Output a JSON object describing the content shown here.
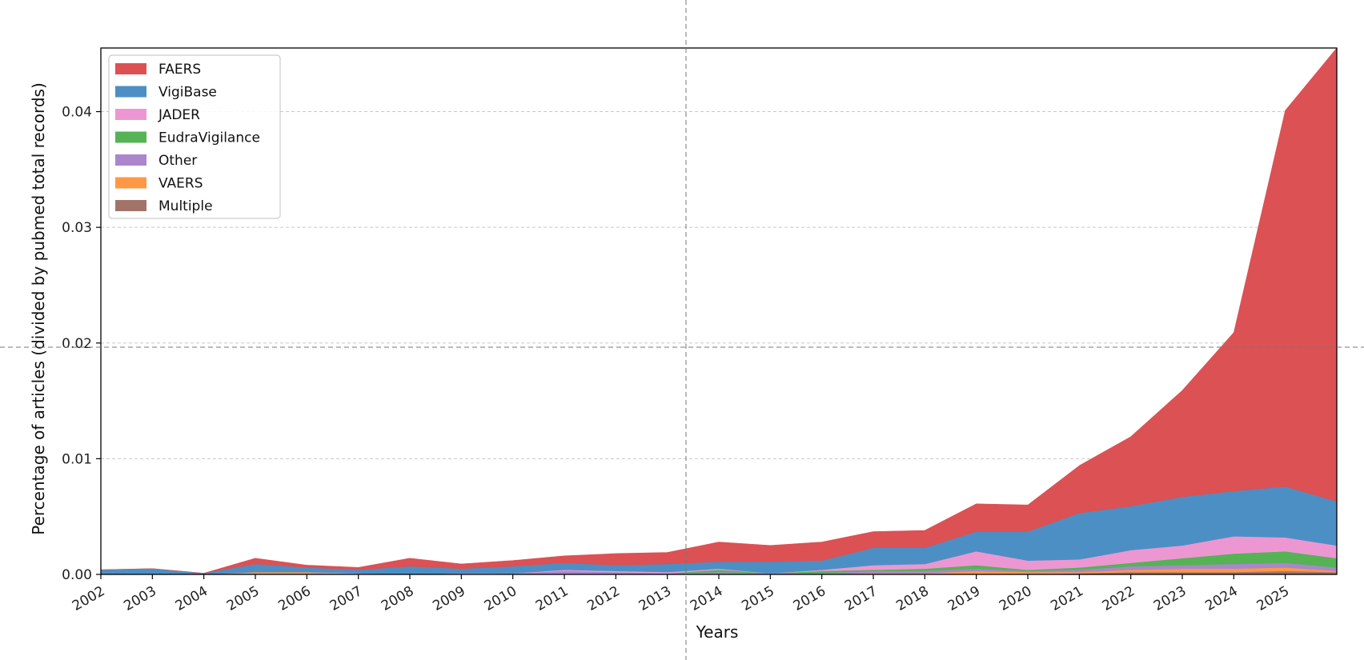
{
  "chart_data": {
    "type": "area",
    "stacked": true,
    "title": "",
    "xlabel": "Years",
    "ylabel": "Percentage of articles (divided by pubmed total records)",
    "x": [
      2002,
      2003,
      2004,
      2005,
      2006,
      2007,
      2008,
      2009,
      2010,
      2011,
      2012,
      2013,
      2014,
      2015,
      2016,
      2017,
      2018,
      2019,
      2020,
      2021,
      2022,
      2023,
      2024,
      2025,
      2026
    ],
    "xticks": [
      "2002",
      "2003",
      "2004",
      "2005",
      "2006",
      "2007",
      "2008",
      "2009",
      "2010",
      "2011",
      "2012",
      "2013",
      "2014",
      "2015",
      "2016",
      "2017",
      "2018",
      "2019",
      "2020",
      "2021",
      "2022",
      "2023",
      "2024",
      "2025"
    ],
    "xlim": [
      2002,
      2026
    ],
    "ylim": [
      0,
      0.0455
    ],
    "yticks": [
      "0.00",
      "0.01",
      "0.02",
      "0.03",
      "0.04"
    ],
    "ytick_values": [
      0,
      0.01,
      0.02,
      0.03,
      0.04
    ],
    "grid": "y",
    "legend_position": "top-left",
    "series": [
      {
        "name": "Multiple",
        "color": "#a27469",
        "values": [
          0,
          0,
          0,
          0,
          0,
          0,
          0,
          0,
          0,
          0,
          0,
          0,
          0,
          0,
          0,
          0,
          0,
          0,
          0,
          0.0001,
          0.0002,
          0.0002,
          0.0002,
          0.0003,
          0.0002
        ]
      },
      {
        "name": "VAERS",
        "color": "#ff9843",
        "values": [
          0,
          0,
          0,
          0.0002,
          0.0002,
          0,
          0,
          0,
          0,
          0,
          0,
          0,
          0,
          0,
          0,
          0.0001,
          0.0001,
          0.0003,
          0.0002,
          0.0001,
          0.0002,
          0.0003,
          0.0003,
          0.0003,
          0.0001
        ]
      },
      {
        "name": "Other",
        "color": "#ab86cc",
        "values": [
          0,
          0,
          0,
          0,
          0,
          0,
          0,
          0,
          0.0001,
          0.0003,
          0.0002,
          0.0001,
          0.0002,
          0.0001,
          0.0001,
          0.0002,
          0.0002,
          0.0002,
          0.0001,
          0.0002,
          0.0003,
          0.0003,
          0.0004,
          0.0004,
          0.0003
        ]
      },
      {
        "name": "EudraVigilance",
        "color": "#55b355",
        "values": [
          0,
          0,
          0,
          0,
          0,
          0,
          0,
          0,
          0,
          0,
          0,
          0,
          0.0002,
          0,
          0.0002,
          0.0001,
          0.0002,
          0.0003,
          0.0001,
          0.0002,
          0.0003,
          0.0006,
          0.0009,
          0.001,
          0.0008
        ]
      },
      {
        "name": "JADER",
        "color": "#ec97d2",
        "values": [
          0,
          0,
          0,
          0,
          0,
          0.0001,
          0,
          0.0001,
          0,
          0.0001,
          0.0001,
          0.0001,
          0.0001,
          0,
          0.0001,
          0.0004,
          0.0004,
          0.0012,
          0.0008,
          0.0007,
          0.0011,
          0.0011,
          0.0015,
          0.0012,
          0.0011
        ]
      },
      {
        "name": "VigiBase",
        "color": "#4c8fc5",
        "values": [
          0.0004,
          0.0005,
          0.0001,
          0.0007,
          0.0004,
          0.0003,
          0.0007,
          0.0004,
          0.0006,
          0.0006,
          0.0005,
          0.0007,
          0.0006,
          0.001,
          0.0008,
          0.0015,
          0.0014,
          0.0017,
          0.0025,
          0.004,
          0.0038,
          0.0042,
          0.0039,
          0.0044,
          0.0038
        ]
      },
      {
        "name": "FAERS",
        "color": "#db5154",
        "values": [
          0,
          0,
          0,
          0.0005,
          0.0002,
          0.0002,
          0.0007,
          0.0004,
          0.0005,
          0.0006,
          0.001,
          0.001,
          0.0017,
          0.0014,
          0.0016,
          0.0014,
          0.0015,
          0.0024,
          0.0023,
          0.0041,
          0.006,
          0.0092,
          0.0137,
          0.0325,
          0.0392
        ]
      }
    ],
    "legend_order": [
      "FAERS",
      "VigiBase",
      "JADER",
      "EudraVigilance",
      "Other",
      "VAERS",
      "Multiple"
    ]
  }
}
